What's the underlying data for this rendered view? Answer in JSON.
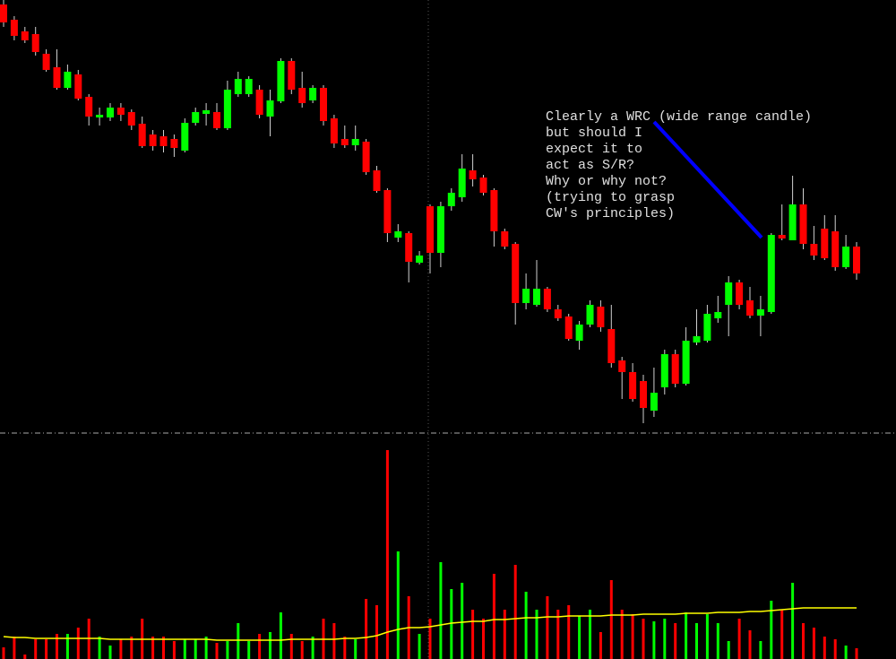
{
  "chart_data": [
    {
      "type": "candlestick",
      "up_color": "#00ff00",
      "down_color": "#ff0000",
      "wick_color": "#d0d0d0",
      "ylim": [
        0,
        480
      ],
      "open": [
        475,
        458,
        445,
        442,
        420,
        405,
        382,
        397,
        372,
        349,
        349,
        360,
        355,
        342,
        330,
        328,
        325,
        312,
        343,
        353,
        355,
        337,
        375,
        375,
        380,
        350,
        367,
        412,
        382,
        368,
        382,
        348,
        325,
        318,
        322,
        290,
        268,
        215,
        220,
        187,
        250,
        198,
        250,
        260,
        290,
        282,
        268,
        222,
        208,
        142,
        140,
        158,
        135,
        127,
        100,
        118,
        138,
        113,
        78,
        65,
        55,
        22,
        48,
        85,
        52,
        98,
        100,
        125,
        140,
        165,
        145,
        128,
        132,
        218,
        212,
        252,
        208,
        225,
        222,
        182,
        205
      ],
      "high": [
        480,
        462,
        450,
        450,
        425,
        425,
        408,
        402,
        375,
        360,
        365,
        365,
        358,
        350,
        335,
        335,
        330,
        348,
        360,
        365,
        365,
        390,
        400,
        395,
        385,
        380,
        415,
        415,
        400,
        385,
        385,
        352,
        340,
        340,
        325,
        295,
        270,
        230,
        222,
        200,
        252,
        255,
        270,
        308,
        308,
        285,
        270,
        225,
        210,
        175,
        190,
        160,
        140,
        130,
        122,
        145,
        145,
        140,
        82,
        75,
        62,
        70,
        90,
        90,
        115,
        135,
        140,
        150,
        172,
        168,
        160,
        150,
        220,
        252,
        284,
        270,
        228,
        240,
        240,
        218,
        210
      ],
      "low": [
        450,
        435,
        432,
        418,
        400,
        380,
        380,
        368,
        340,
        340,
        345,
        345,
        335,
        315,
        312,
        310,
        305,
        310,
        340,
        340,
        335,
        335,
        372,
        372,
        348,
        328,
        365,
        375,
        360,
        365,
        340,
        315,
        315,
        312,
        285,
        265,
        210,
        210,
        165,
        185,
        175,
        182,
        245,
        255,
        272,
        262,
        205,
        202,
        118,
        135,
        138,
        132,
        122,
        100,
        90,
        115,
        110,
        70,
        35,
        32,
        8,
        15,
        40,
        48,
        50,
        95,
        98,
        120,
        105,
        135,
        125,
        105,
        130,
        212,
        212,
        202,
        190,
        190,
        178,
        180,
        168
      ],
      "close": [
        455,
        440,
        435,
        422,
        402,
        382,
        400,
        370,
        350,
        352,
        360,
        352,
        340,
        317,
        317,
        317,
        315,
        343,
        355,
        357,
        337,
        380,
        392,
        392,
        352,
        368,
        412,
        380,
        365,
        382,
        345,
        320,
        318,
        325,
        288,
        267,
        220,
        222,
        188,
        195,
        198,
        250,
        265,
        292,
        280,
        265,
        222,
        205,
        142,
        158,
        158,
        135,
        125,
        102,
        118,
        140,
        115,
        75,
        65,
        35,
        25,
        42,
        85,
        52,
        100,
        105,
        130,
        132,
        165,
        140,
        128,
        135,
        218,
        214,
        252,
        208,
        195,
        192,
        182,
        205,
        175
      ],
      "annotation": [
        "Clearly a WRC (wide range candle)",
        "but should I",
        "expect it to",
        "act as S/R?",
        "Why or why not?",
        "(trying to grasp",
        "CW's principles)"
      ],
      "annotation_color": "#e0e0e0",
      "pointer_color": "#0000ff"
    },
    {
      "type": "bar",
      "up_color": "#00ff00",
      "down_color": "#ff0000",
      "ylim": [
        0,
        247
      ],
      "values": [
        13,
        25,
        5,
        22,
        22,
        28,
        28,
        35,
        45,
        25,
        15,
        22,
        25,
        45,
        25,
        25,
        20,
        22,
        22,
        25,
        18,
        20,
        40,
        20,
        28,
        30,
        52,
        28,
        20,
        25,
        45,
        40,
        25,
        22,
        67,
        60,
        233,
        120,
        70,
        28,
        45,
        108,
        78,
        85,
        55,
        45,
        95,
        55,
        105,
        75,
        55,
        70,
        55,
        60,
        48,
        55,
        30,
        88,
        55,
        50,
        45,
        42,
        45,
        40,
        52,
        40,
        50,
        40,
        20,
        45,
        32,
        20,
        65,
        55,
        85,
        40,
        35,
        25,
        22,
        15,
        12
      ],
      "ma_values": [
        25,
        24,
        24,
        23,
        23,
        23,
        23,
        23,
        23,
        23,
        22,
        22,
        22,
        22,
        22,
        22,
        22,
        22,
        22,
        22,
        21,
        21,
        21,
        21,
        21,
        21,
        21,
        22,
        22,
        22,
        22,
        22,
        23,
        23,
        24,
        26,
        30,
        33,
        35,
        35,
        36,
        38,
        40,
        41,
        42,
        42,
        44,
        44,
        45,
        46,
        46,
        47,
        47,
        48,
        48,
        48,
        48,
        49,
        49,
        49,
        50,
        50,
        50,
        50,
        51,
        51,
        51,
        52,
        52,
        52,
        53,
        53,
        54,
        55,
        56,
        57,
        57,
        57,
        57,
        57,
        57
      ],
      "ma_color": "#ffff00"
    }
  ]
}
